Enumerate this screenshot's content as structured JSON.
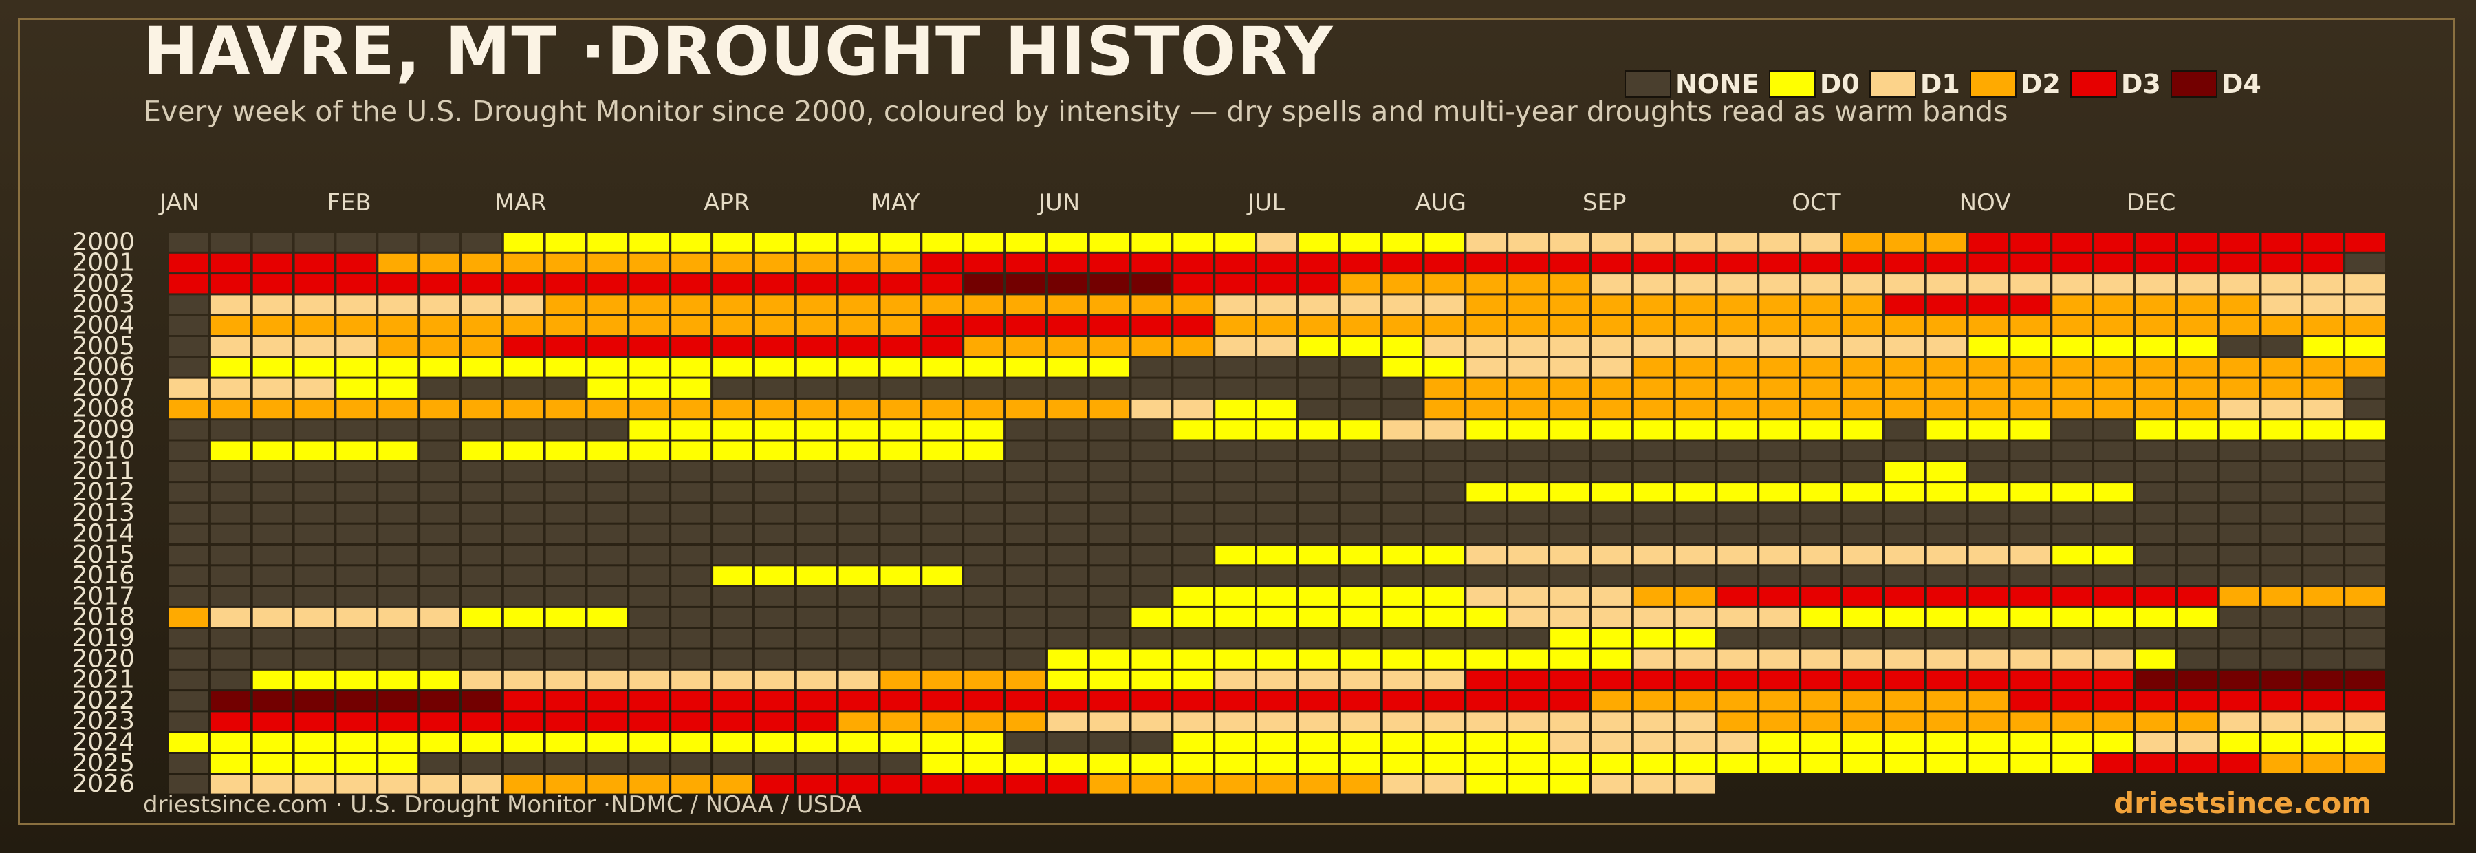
{
  "title": "HAVRE, MT ·DROUGHT HISTORY",
  "subtitle": "Every week of the U.S. Drought Monitor since 2000, coloured by intensity — dry spells and multi-year droughts read as warm bands",
  "legend": [
    {
      "label": "NONE",
      "color": "#4a3f2e"
    },
    {
      "label": "D0",
      "color": "#ffff00"
    },
    {
      "label": "D1",
      "color": "#fcd38a"
    },
    {
      "label": "D2",
      "color": "#ffaa00"
    },
    {
      "label": "D3",
      "color": "#e60000"
    },
    {
      "label": "D4",
      "color": "#730000"
    }
  ],
  "source": "driestsince.com  · U.S. Drought Monitor ·NDMC / NOAA / USDA",
  "brand": "driestsince.com",
  "chart_data": {
    "type": "heatmap",
    "x_labels": [
      "JAN",
      "FEB",
      "MAR",
      "APR",
      "MAY",
      "JUN",
      "JUL",
      "AUG",
      "SEP",
      "OCT",
      "NOV",
      "DEC"
    ],
    "x_label_weeks": [
      0,
      4,
      8,
      13,
      17,
      21,
      26,
      30,
      34,
      39,
      43,
      47
    ],
    "weeks_per_year": 53,
    "value_categories": [
      "NONE",
      "D0",
      "D1",
      "D2",
      "D3",
      "D4"
    ],
    "value_encoding": "one character per week: 0=NONE, 1=D0, 2=D1, 3=D2, 4=D3, 5=D4, -=no data",
    "years": [
      "2000",
      "2001",
      "2002",
      "2003",
      "2004",
      "2005",
      "2006",
      "2007",
      "2008",
      "2009",
      "2010",
      "2011",
      "2012",
      "2013",
      "2014",
      "2015",
      "2016",
      "2017",
      "2018",
      "2019",
      "2020",
      "2021",
      "2022",
      "2023",
      "2024",
      "2025",
      "2026"
    ],
    "rows": [
      "00000000111111111111111111211112222222223334444444444",
      "44444333333333333344444444444444444444444444444444440",
      "44444444444444444445555544443333332222222222222222222",
      "02222222233333333333333332222223333333333444433333222",
      "03333333333333333344444443333333333333333333333333333",
      "02222333444444444443333332211122222222222221111110011",
      "01111111111111111111111000000112222333333333333333333",
      "22221100001110000000000000000033333333333333333333330",
      "33333333333333333333333221100033333333333333333332220",
      "00000000000111111111000011111221111111111011100111111",
      "01111101111111111111000000000000000000000000000000000",
      "00000000000000000000000000000000000000000110000000000",
      "00000000000000000000000000000001111111111111111000000",
      "00000000000000000000000000000000000000000000000000000",
      "00000000000000000000000000000000000000000000000000000",
      "00000000000000000000000001111112222222222222211000000",
      "00000000000001111110000000000000000000000000000000000",
      "00000000000000000000000011111112222334444444444443333",
      "32222221111000000000000111111111222222211111111110000",
      "00000000000000000000000000000000011110000000000000000",
      "00000000000000000000011111111111111222222222222100000",
      "00111112222222222333311112222224444444444444444555555",
      "05555555444444444444444444444444443333333333444444444",
      "04444444444444443333322222222222222223333333333332222",
      "11111111111111111111000011111111122222111111111221111",
      "01111100000000000011111111111111111111111111114444333",
      "0222222233333344444444333333322111222---------------"
    ]
  }
}
